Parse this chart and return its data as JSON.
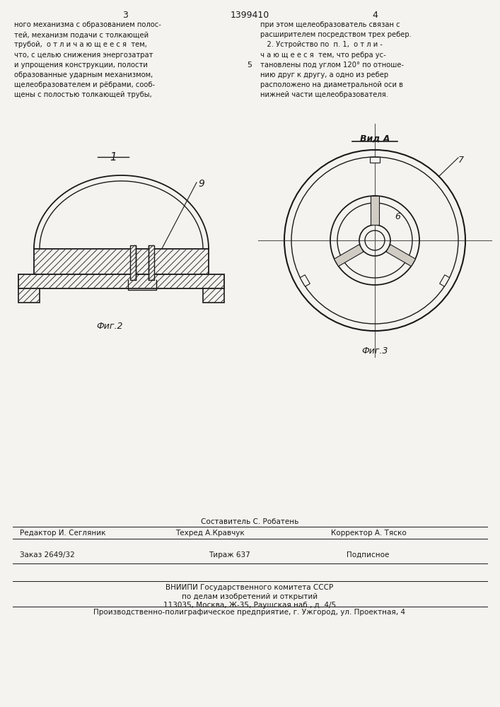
{
  "bg_color": "#f5f3ef",
  "page_num_left": "3",
  "page_num_center": "1399410",
  "page_num_right": "4",
  "col1_lines": [
    "ного механизма с образованием полос-",
    "тей, механизм подачи с толкающей",
    "трубой,  о т л и ч а ю щ е е с я  тем,",
    "что, с целью снижения энергозатрат",
    "и упрощения конструкции, полости",
    "образованные ударным механизмом,",
    "щелеобразователем и рёбрами, сооб-",
    "щены с полостью толкающей трубы,"
  ],
  "col2_lines": [
    "при этом щелеобразователь связан с",
    "расширителем посредством трех ребер.",
    "   2. Устройство по  п. 1,  о т л и -",
    "ч а ю щ е е с я  тем, что ребра ус-",
    "тановлены под углом 120° по отноше-",
    "нию друг к другу, а одно из ребер",
    "расположено на диаметральной оси в",
    "нижней части щелеобразователя."
  ],
  "line_number_col1": "5",
  "vid_a_label": "Вид А",
  "label_1": "1",
  "label_9": "9",
  "label_6": "6",
  "label_7": "7",
  "fig2_caption": "Фиг.2",
  "fig3_caption": "Фиг.3",
  "footer_line1": "Составитель С. Робатень",
  "footer_editor": "Редактор И. Сегляник",
  "footer_techred": "Техред А.Кравчук",
  "footer_corrector": "Корректор А. Тяско",
  "footer_order": "Заказ 2649/32",
  "footer_tirazh": "Тираж 637",
  "footer_podpisnoe": "Подписное",
  "footer_vniipи": "ВНИИПИ Государственного комитета СССР",
  "footer_po_delam": "по делам изобретений и открытий",
  "footer_address": "113035, Москва, Ж-35, Раушская наб., д. 4/5",
  "footer_factory": "Производственно-полиграфическое предприятие, г. Ужгород, ул. Проектная, 4",
  "line_color": "#1a1a1a",
  "hatch_color": "#333333"
}
